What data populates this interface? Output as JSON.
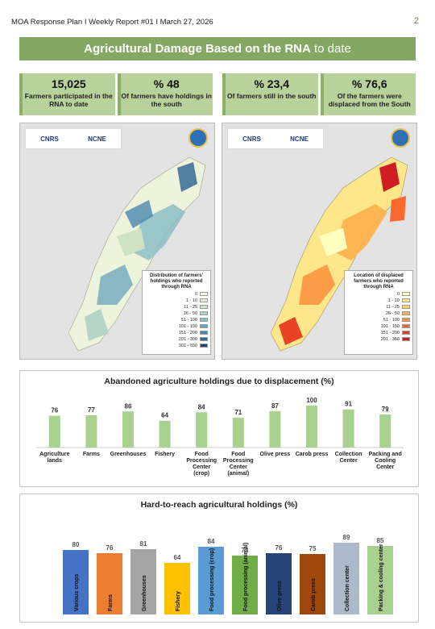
{
  "header": {
    "text": "MOA Response Plan I Weekly Report #01 I March 27, 2026",
    "page_number": "2"
  },
  "banner": {
    "title_main": "Agricultural Damage Based on the RNA",
    "title_light": " to date"
  },
  "stats": [
    {
      "value": "15,025",
      "label": "Farmers participated in the RNA to date"
    },
    {
      "value": "% 48",
      "label": "Of farmers have holdings in the south"
    },
    {
      "value": "% 23,4",
      "label": "Of farmers still in the south"
    },
    {
      "value": "% 76,6",
      "label": "Of the farmers were displaced from the South"
    }
  ],
  "maps": {
    "left": {
      "logo_text": "CNRS",
      "logo_text2": "NCNE",
      "legend_title": "Distribution of farmers' holdings who reported through RNA",
      "legend": [
        {
          "label": "0",
          "color": "#f4f8ea"
        },
        {
          "label": "1 - 10",
          "color": "#e4efcd"
        },
        {
          "label": "11 - 25",
          "color": "#cde3c4"
        },
        {
          "label": "26 - 50",
          "color": "#aed1c6"
        },
        {
          "label": "51 - 100",
          "color": "#8cbdc7"
        },
        {
          "label": "101 - 150",
          "color": "#67a3bf"
        },
        {
          "label": "151 - 200",
          "color": "#4a87b0"
        },
        {
          "label": "201 - 300",
          "color": "#346a98"
        },
        {
          "label": "301 - 550",
          "color": "#20466f"
        }
      ]
    },
    "right": {
      "logo_text": "CNRS",
      "logo_text2": "NCNE",
      "legend_title": "Location of displaced farmers who reported through RNA",
      "legend": [
        {
          "label": "0",
          "color": "#ffffbf"
        },
        {
          "label": "1 - 10",
          "color": "#fee68a"
        },
        {
          "label": "11 - 25",
          "color": "#fed064"
        },
        {
          "label": "26 - 50",
          "color": "#fdb04a"
        },
        {
          "label": "51 - 100",
          "color": "#fc8f3b"
        },
        {
          "label": "101 - 150",
          "color": "#f86a2f"
        },
        {
          "label": "151 - 200",
          "color": "#ea4227"
        },
        {
          "label": "201 - 350",
          "color": "#d01d22"
        }
      ]
    }
  },
  "chart_data": [
    {
      "type": "bar",
      "title": "Abandoned agriculture holdings due to displacement (%)",
      "categories": [
        "Agriculture lands",
        "Farms",
        "Greenhouses",
        "Fishery",
        "Food Processing Center (crop)",
        "Food Processing Center (animal)",
        "Olive press",
        "Carob press",
        "Collection Center",
        "Packing and Cooling Center"
      ],
      "values": [
        76,
        77,
        86,
        64,
        84,
        71,
        87,
        100,
        91,
        79
      ],
      "color": "#a9d18e",
      "ylim": [
        0,
        100
      ]
    },
    {
      "type": "bar",
      "title": "Hard-to-reach agricultural holdings (%)",
      "categories": [
        "Various crops",
        "Farms",
        "Greenhouses",
        "Fishery",
        "Food processing (crop)",
        "Food processing (animal)",
        "Olive press",
        "Carob press",
        "Collection center",
        "Packing & cooling center"
      ],
      "values": [
        80,
        76,
        81,
        64,
        84,
        73,
        76,
        75,
        89,
        85
      ],
      "colors": [
        "#4472c4",
        "#ed7d31",
        "#a5a5a5",
        "#ffc000",
        "#5b9bd5",
        "#70ad47",
        "#264478",
        "#9e480e",
        "#adb9ca",
        "#a9d18e"
      ],
      "ylim": [
        0,
        100
      ]
    }
  ]
}
